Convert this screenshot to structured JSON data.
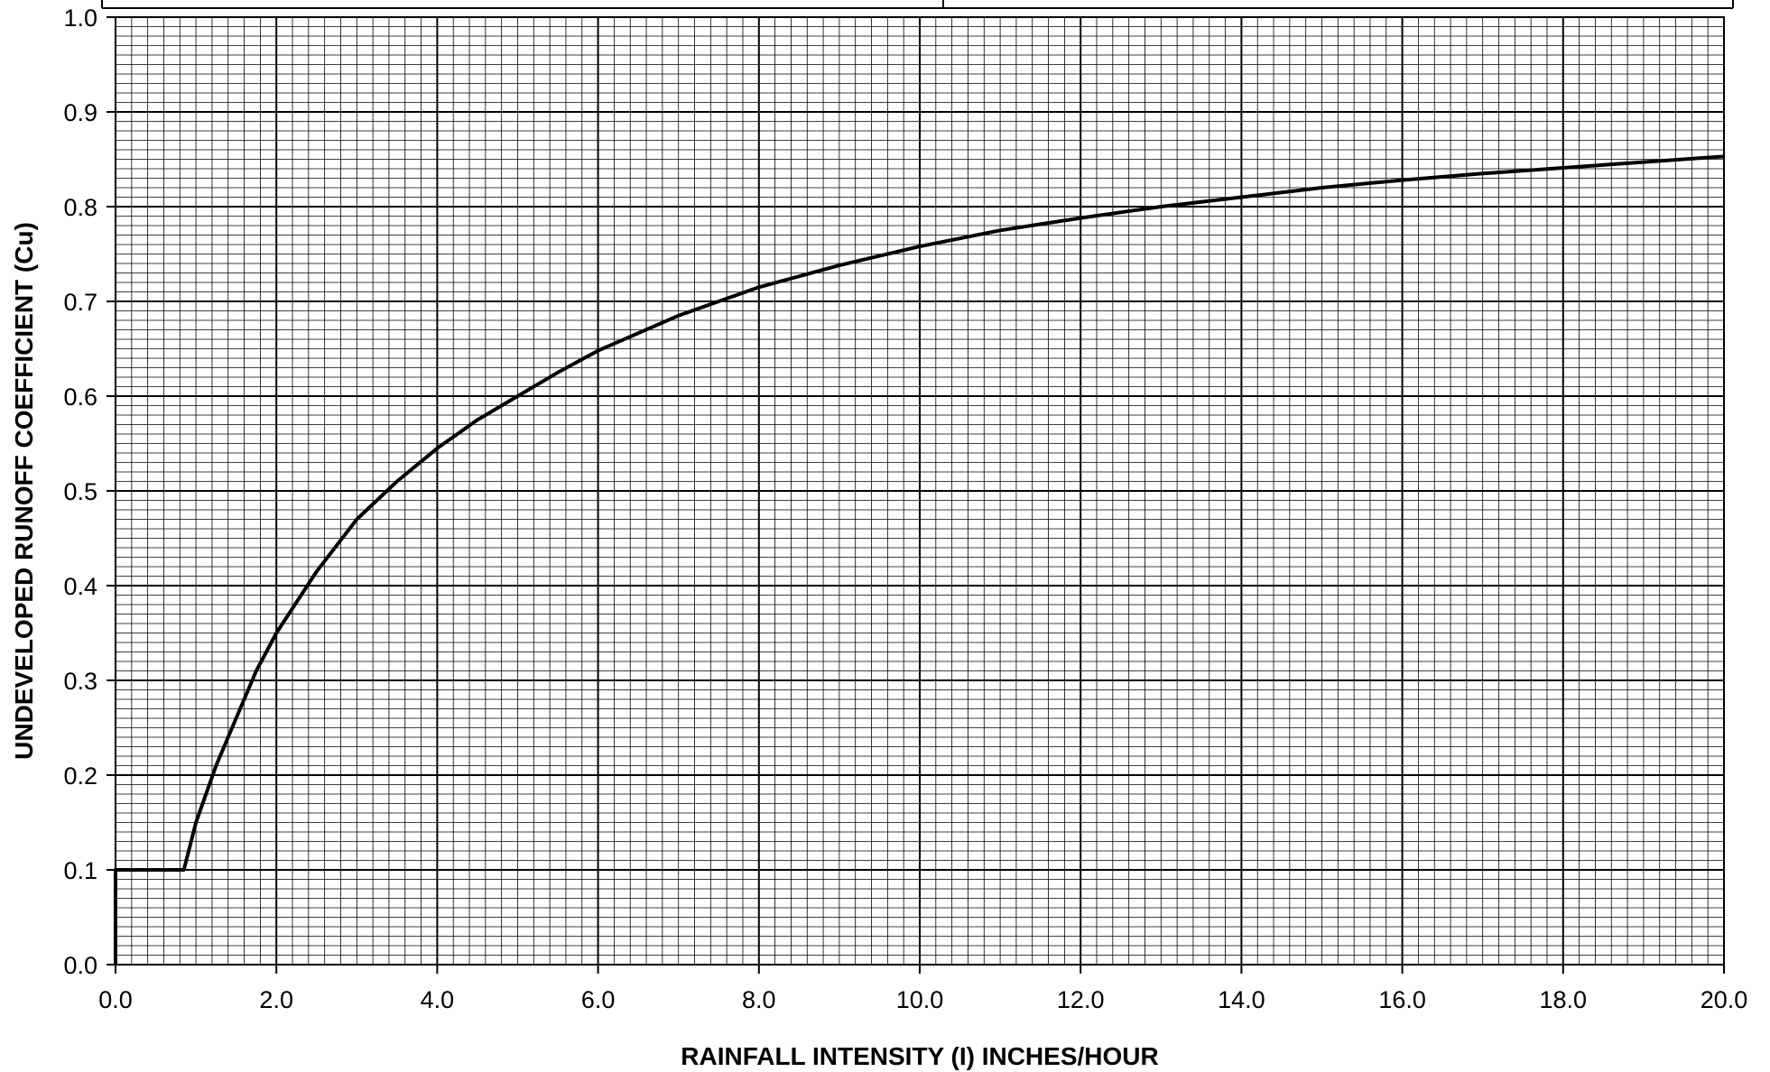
{
  "chart_data": {
    "type": "line",
    "title": "",
    "xlabel": "RAINFALL INTENSITY (I) INCHES/HOUR",
    "ylabel": "UNDEVELOPED RUNOFF COEFFICIENT (Cu)",
    "xlim": [
      0,
      20
    ],
    "ylim": [
      0,
      1.0
    ],
    "grid": true,
    "x_tick_labels": [
      "0.0",
      "2.0",
      "4.0",
      "6.0",
      "8.0",
      "10.0",
      "12.0",
      "14.0",
      "16.0",
      "18.0",
      "20.0"
    ],
    "y_tick_labels": [
      "0.0",
      "0.1",
      "0.2",
      "0.3",
      "0.4",
      "0.5",
      "0.6",
      "0.7",
      "0.8",
      "0.9",
      "1.0"
    ],
    "series": [
      {
        "x": [
          0.0,
          0.0,
          0.85,
          1.0,
          1.25,
          1.5,
          1.75,
          2.0,
          2.5,
          3.0,
          3.5,
          4.0,
          4.5,
          5.0,
          5.5,
          6.0,
          7.0,
          8.0,
          9.0,
          10.0,
          11.0,
          12.0,
          13.0,
          14.0,
          15.0,
          16.0,
          17.0,
          18.0,
          19.0,
          20.0
        ],
        "y": [
          0.0,
          0.1,
          0.1,
          0.15,
          0.21,
          0.26,
          0.31,
          0.35,
          0.415,
          0.47,
          0.51,
          0.545,
          0.575,
          0.6,
          0.625,
          0.648,
          0.685,
          0.715,
          0.738,
          0.758,
          0.775,
          0.788,
          0.8,
          0.81,
          0.82,
          0.828,
          0.835,
          0.841,
          0.847,
          0.853
        ],
        "color": "#000000"
      }
    ]
  }
}
